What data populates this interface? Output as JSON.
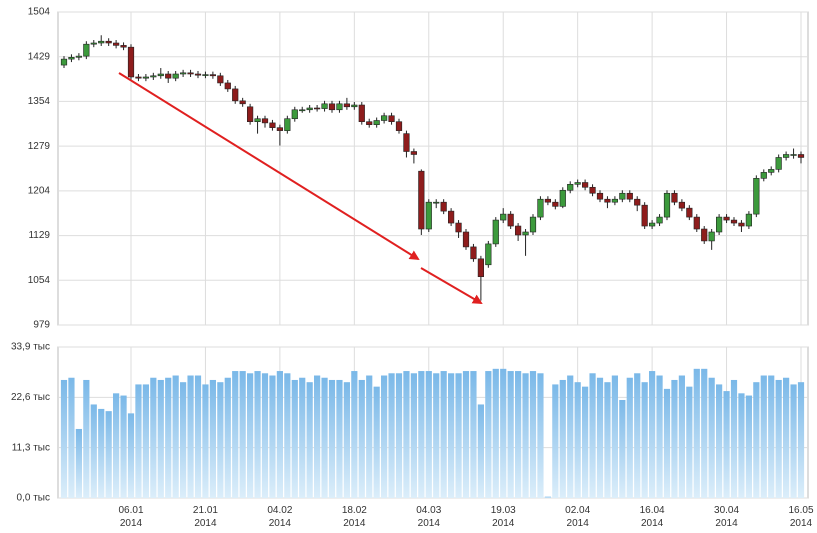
{
  "chart_data": {
    "type": "candlestick",
    "categories": [
      null,
      null,
      null,
      null,
      null,
      null,
      null,
      null,
      null,
      "06.01 2014",
      null,
      null,
      null,
      null,
      null,
      null,
      null,
      null,
      null,
      "21.01 2014",
      null,
      null,
      null,
      null,
      null,
      null,
      null,
      null,
      null,
      "04.02 2014",
      null,
      null,
      null,
      null,
      null,
      null,
      null,
      null,
      null,
      "18.02 2014",
      null,
      null,
      null,
      null,
      null,
      null,
      null,
      null,
      null,
      "04.03 2014",
      null,
      null,
      null,
      null,
      null,
      null,
      null,
      null,
      null,
      "19.03 2014",
      null,
      null,
      null,
      null,
      null,
      null,
      null,
      null,
      null,
      "02.04 2014",
      null,
      null,
      null,
      null,
      null,
      null,
      null,
      null,
      null,
      "16.04 2014",
      null,
      null,
      null,
      null,
      null,
      null,
      null,
      null,
      null,
      "30.04 2014",
      null,
      null,
      null,
      null,
      null,
      null,
      null,
      null,
      null,
      "16.05 2014"
    ],
    "open": [
      1415,
      1425,
      1428,
      1430,
      1450,
      1452,
      1455,
      1452,
      1448,
      1445,
      1395,
      1393,
      1395,
      1397,
      1400,
      1393,
      1400,
      1402,
      1400,
      1398,
      1399,
      1397,
      1385,
      1375,
      1355,
      1345,
      1320,
      1325,
      1318,
      1310,
      1305,
      1325,
      1340,
      1340,
      1343,
      1342,
      1350,
      1340,
      1350,
      1345,
      1348,
      1320,
      1315,
      1322,
      1330,
      1320,
      1300,
      1270,
      1237,
      1140,
      1185,
      1185,
      1170,
      1150,
      1135,
      1110,
      1090,
      1080,
      1115,
      1155,
      1165,
      1145,
      1130,
      1135,
      1160,
      1190,
      1185,
      1178,
      1205,
      1215,
      1218,
      1210,
      1200,
      1190,
      1185,
      1190,
      1200,
      1190,
      1180,
      1145,
      1150,
      1160,
      1200,
      1185,
      1175,
      1160,
      1140,
      1120,
      1135,
      1160,
      1155,
      1150,
      1145,
      1165,
      1225,
      1235,
      1240,
      1260,
      1265,
      1265
    ],
    "high": [
      1430,
      1433,
      1435,
      1455,
      1457,
      1465,
      1460,
      1457,
      1453,
      1450,
      1400,
      1400,
      1402,
      1410,
      1405,
      1405,
      1407,
      1407,
      1405,
      1404,
      1404,
      1402,
      1390,
      1380,
      1360,
      1350,
      1330,
      1330,
      1323,
      1315,
      1330,
      1345,
      1345,
      1348,
      1348,
      1355,
      1355,
      1355,
      1360,
      1353,
      1353,
      1325,
      1327,
      1335,
      1335,
      1325,
      1305,
      1275,
      1240,
      1190,
      1190,
      1190,
      1175,
      1155,
      1140,
      1115,
      1095,
      1120,
      1160,
      1175,
      1170,
      1150,
      1140,
      1165,
      1195,
      1195,
      1190,
      1210,
      1220,
      1223,
      1223,
      1215,
      1205,
      1195,
      1195,
      1205,
      1205,
      1195,
      1185,
      1155,
      1165,
      1205,
      1205,
      1190,
      1180,
      1165,
      1145,
      1140,
      1165,
      1165,
      1160,
      1155,
      1170,
      1230,
      1240,
      1245,
      1265,
      1270,
      1275,
      1270
    ],
    "low": [
      1410,
      1420,
      1423,
      1425,
      1445,
      1447,
      1447,
      1443,
      1440,
      1390,
      1388,
      1388,
      1390,
      1392,
      1385,
      1388,
      1395,
      1395,
      1393,
      1393,
      1392,
      1380,
      1370,
      1350,
      1345,
      1315,
      1300,
      1310,
      1305,
      1280,
      1300,
      1320,
      1335,
      1335,
      1337,
      1337,
      1335,
      1335,
      1340,
      1340,
      1315,
      1310,
      1310,
      1317,
      1315,
      1300,
      1260,
      1250,
      1130,
      1135,
      1175,
      1165,
      1145,
      1125,
      1105,
      1085,
      1020,
      1075,
      1110,
      1150,
      1140,
      1120,
      1095,
      1130,
      1155,
      1180,
      1173,
      1175,
      1200,
      1210,
      1205,
      1195,
      1185,
      1175,
      1180,
      1185,
      1185,
      1170,
      1140,
      1140,
      1145,
      1155,
      1180,
      1170,
      1155,
      1135,
      1115,
      1105,
      1130,
      1150,
      1145,
      1135,
      1140,
      1160,
      1220,
      1230,
      1235,
      1255,
      1258,
      1250
    ],
    "close": [
      1425,
      1428,
      1430,
      1450,
      1452,
      1455,
      1452,
      1448,
      1445,
      1395,
      1393,
      1395,
      1397,
      1400,
      1393,
      1400,
      1402,
      1400,
      1398,
      1399,
      1397,
      1385,
      1375,
      1355,
      1350,
      1320,
      1325,
      1318,
      1310,
      1305,
      1325,
      1340,
      1340,
      1343,
      1342,
      1350,
      1340,
      1350,
      1345,
      1348,
      1320,
      1315,
      1322,
      1330,
      1320,
      1305,
      1270,
      1265,
      1140,
      1185,
      1185,
      1170,
      1150,
      1135,
      1110,
      1090,
      1060,
      1115,
      1155,
      1165,
      1145,
      1130,
      1135,
      1160,
      1190,
      1185,
      1178,
      1205,
      1215,
      1218,
      1210,
      1200,
      1190,
      1185,
      1190,
      1200,
      1190,
      1180,
      1145,
      1150,
      1160,
      1200,
      1185,
      1175,
      1160,
      1140,
      1120,
      1135,
      1160,
      1155,
      1150,
      1145,
      1165,
      1225,
      1235,
      1240,
      1260,
      1265,
      1265,
      1260
    ],
    "up_color": "#3c9a3c",
    "down_color": "#8e1c1c",
    "ylim": [
      979,
      1504
    ],
    "yticks": [
      979,
      1054,
      1129,
      1204,
      1279,
      1354,
      1429,
      1504
    ],
    "grid": true,
    "volume": {
      "type": "bar",
      "color": "#8cc4ec",
      "values": [
        26.5,
        27,
        15.5,
        26.5,
        21,
        20,
        19.5,
        23.5,
        23,
        19,
        25.5,
        25.5,
        27,
        26.5,
        27,
        27.5,
        26,
        27.5,
        27.5,
        25.5,
        26.5,
        26,
        27,
        28.5,
        28.5,
        28,
        28.5,
        28,
        27.5,
        28.5,
        28,
        26.5,
        27,
        26,
        27.5,
        27,
        26.5,
        26.5,
        26,
        28.5,
        26.5,
        27.5,
        25,
        27.5,
        28,
        28,
        28.5,
        28,
        28.5,
        28.5,
        28,
        28.5,
        28,
        28,
        28.5,
        28.5,
        21,
        28.5,
        29,
        29,
        28.5,
        28.5,
        28,
        28.5,
        28,
        0.3,
        25.5,
        26.5,
        27.5,
        26,
        25,
        28,
        27,
        26,
        27.5,
        22,
        27,
        28,
        26,
        28.5,
        27.5,
        24.5,
        26.5,
        27.5,
        25,
        29,
        29,
        27,
        25.5,
        24,
        26.5,
        23.5,
        23,
        26,
        27.5,
        27.5,
        26.5,
        27,
        25.5,
        26
      ],
      "ylim": [
        0,
        33.9
      ],
      "yticks": [
        {
          "value": 0,
          "label": "0,0 тыс"
        },
        {
          "value": 11.3,
          "label": "11,3 тыс"
        },
        {
          "value": 22.6,
          "label": "22,6 тыс"
        },
        {
          "value": 33.9,
          "label": "33,9 тыс"
        }
      ]
    }
  }
}
